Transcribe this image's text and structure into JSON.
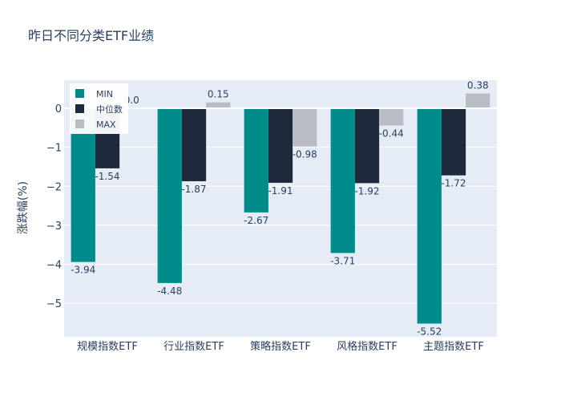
{
  "chart_data": {
    "type": "bar",
    "title": "昨日不同分类ETF业绩",
    "xlabel": "",
    "ylabel": "涨跌幅(%)",
    "categories": [
      "规模指数ETF",
      "行业指数ETF",
      "策略指数ETF",
      "风格指数ETF",
      "主题指数ETF"
    ],
    "series": [
      {
        "name": "MIN",
        "values": [
          -3.94,
          -4.48,
          -2.67,
          -3.71,
          -5.52
        ],
        "labels": [
          "-3.94",
          "-4.48",
          "-2.67",
          "-3.71",
          "-5.52"
        ],
        "color": "#008b8b"
      },
      {
        "name": "中位数",
        "values": [
          -1.54,
          -1.87,
          -1.91,
          -1.92,
          -1.72
        ],
        "labels": [
          "-1.54",
          "-1.87",
          "-1.91",
          "-1.92",
          "-1.72"
        ],
        "color": "#1e293b"
      },
      {
        "name": "MAX",
        "values": [
          0.0,
          0.15,
          -0.98,
          -0.44,
          0.38
        ],
        "labels": [
          "0.0",
          "0.15",
          "-0.98",
          "-0.44",
          "0.38"
        ],
        "color": "#b8bcc4"
      }
    ],
    "ylim": [
      -5.86,
      0.72
    ],
    "yticks": [
      0,
      -1,
      -2,
      -3,
      -4,
      -5
    ],
    "ytick_labels": [
      "0",
      "−1",
      "−2",
      "−3",
      "−4",
      "−5"
    ],
    "grid": true,
    "legend_position": "top-left",
    "plot_background": "#e5ecf6"
  }
}
